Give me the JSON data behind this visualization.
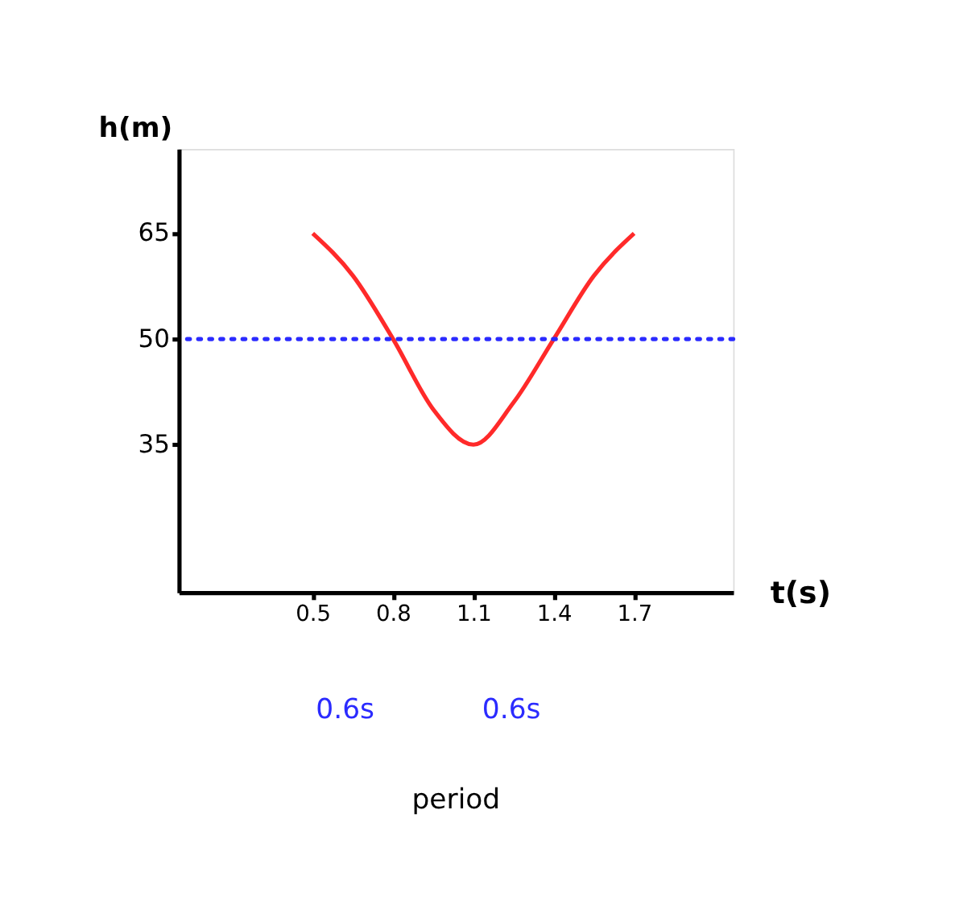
{
  "chart_data": {
    "type": "line",
    "xlabel": "t(s)",
    "ylabel": "h(m)",
    "x": [
      0.5,
      0.65,
      0.8,
      0.95,
      1.1,
      1.25,
      1.4,
      1.55,
      1.7
    ],
    "series": [
      {
        "color": "#ff2a2a",
        "values": [
          65,
          59,
          50,
          40,
          35,
          41,
          50,
          59,
          65
        ]
      }
    ],
    "xlim": [
      0,
      2.07
    ],
    "xticks": [
      0.5,
      0.8,
      1.1,
      1.4,
      1.7
    ],
    "ylim": [
      14,
      77
    ],
    "yticks": [
      35,
      50,
      65
    ],
    "ref_lines": [
      {
        "axis": "y",
        "value": 50,
        "color": "#2b2bff",
        "line_style": "dotted"
      }
    ],
    "annotations": [
      "0.6s",
      "0.6s",
      "period"
    ],
    "grid": false,
    "marker": "none",
    "line_style": "solid"
  }
}
